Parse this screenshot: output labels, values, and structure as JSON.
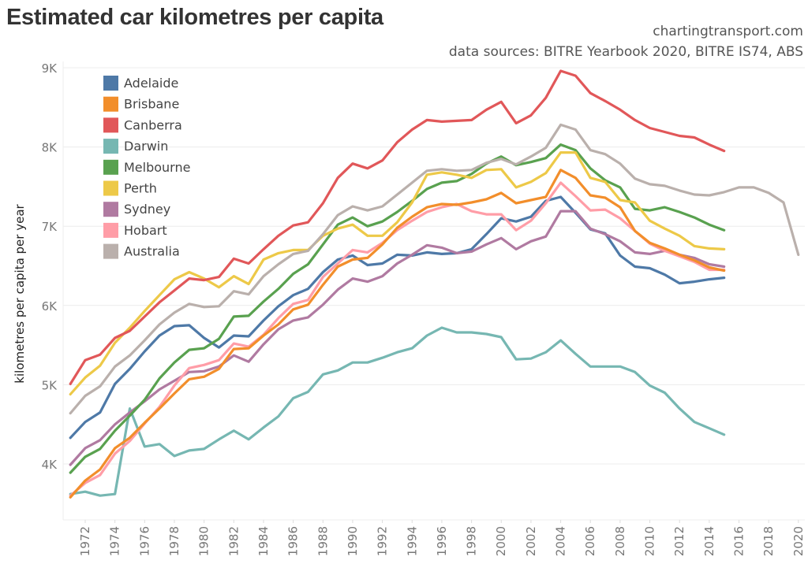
{
  "header": {
    "title": "Estimated car kilometres per capita",
    "source_site": "chartingtransport.com",
    "source_data": "data sources: BITRE Yearbook 2020, BITRE IS74, ABS"
  },
  "chart_data": {
    "type": "line",
    "title": "Estimated car kilometres per capita",
    "xlabel": "",
    "ylabel": "kilometres per capita per year",
    "ylim": [
      3300,
      9000
    ],
    "xlim": [
      1971,
      2020
    ],
    "y_ticks": [
      4000,
      5000,
      6000,
      7000,
      8000,
      9000
    ],
    "y_tick_labels": [
      "4K",
      "5K",
      "6K",
      "7K",
      "8K",
      "9K"
    ],
    "x_ticks": [
      1972,
      1974,
      1976,
      1978,
      1980,
      1982,
      1984,
      1986,
      1988,
      1990,
      1992,
      1994,
      1996,
      1998,
      2000,
      2002,
      2004,
      2006,
      2008,
      2010,
      2012,
      2014,
      2016,
      2018,
      2020
    ],
    "grid": "horizontal",
    "legend_position": "top-left",
    "series": [
      {
        "name": "Adelaide",
        "color": "#4e79a7",
        "start_year": 1971,
        "values": [
          4330,
          4530,
          4650,
          5010,
          5200,
          5420,
          5620,
          5740,
          5750,
          5590,
          5470,
          5620,
          5610,
          5810,
          5990,
          6130,
          6210,
          6420,
          6580,
          6630,
          6510,
          6530,
          6640,
          6630,
          6670,
          6650,
          6660,
          6710,
          6900,
          7100,
          7060,
          7120,
          7320,
          7370,
          7170,
          6960,
          6910,
          6630,
          6490,
          6470,
          6390,
          6280,
          6300,
          6330,
          6350
        ]
      },
      {
        "name": "Brisbane",
        "color": "#f28e2b",
        "start_year": 1971,
        "values": [
          3580,
          3790,
          3930,
          4200,
          4330,
          4520,
          4700,
          4890,
          5070,
          5100,
          5200,
          5450,
          5460,
          5620,
          5760,
          5950,
          6010,
          6260,
          6490,
          6580,
          6600,
          6770,
          6980,
          7120,
          7240,
          7280,
          7270,
          7300,
          7340,
          7420,
          7290,
          7330,
          7370,
          7710,
          7610,
          7390,
          7360,
          7240,
          6940,
          6790,
          6720,
          6640,
          6570,
          6480,
          6440
        ]
      },
      {
        "name": "Canberra",
        "color": "#e15759",
        "start_year": 1971,
        "values": [
          5010,
          5310,
          5380,
          5590,
          5680,
          5860,
          6040,
          6190,
          6340,
          6320,
          6360,
          6590,
          6530,
          6710,
          6880,
          7010,
          7050,
          7290,
          7610,
          7790,
          7730,
          7830,
          8060,
          8220,
          8340,
          8320,
          8330,
          8340,
          8470,
          8570,
          8300,
          8400,
          8620,
          8960,
          8900,
          8680,
          8580,
          8470,
          8340,
          8240,
          8190,
          8140,
          8120,
          8030,
          7950
        ]
      },
      {
        "name": "Darwin",
        "color": "#76b7b2",
        "start_year": 1971,
        "values": [
          3620,
          3650,
          3600,
          3620,
          4700,
          4220,
          4250,
          4100,
          4170,
          4190,
          4310,
          4420,
          4310,
          4460,
          4600,
          4830,
          4910,
          5130,
          5180,
          5280,
          5280,
          5340,
          5410,
          5460,
          5620,
          5720,
          5660,
          5660,
          5640,
          5600,
          5320,
          5330,
          5410,
          5560,
          5390,
          5230,
          5230,
          5230,
          5160,
          4990,
          4900,
          4700,
          4530,
          4450,
          4370
        ]
      },
      {
        "name": "Melbourne",
        "color": "#59a14f",
        "start_year": 1971,
        "values": [
          3890,
          4090,
          4190,
          4420,
          4610,
          4810,
          5080,
          5280,
          5440,
          5460,
          5580,
          5860,
          5870,
          6050,
          6210,
          6400,
          6520,
          6770,
          7020,
          7110,
          7000,
          7060,
          7180,
          7320,
          7470,
          7550,
          7570,
          7660,
          7790,
          7880,
          7770,
          7810,
          7860,
          8030,
          7960,
          7730,
          7580,
          7490,
          7220,
          7200,
          7240,
          7180,
          7110,
          7020,
          6950
        ]
      },
      {
        "name": "Perth",
        "color": "#edc948",
        "start_year": 1971,
        "values": [
          4880,
          5090,
          5240,
          5530,
          5720,
          5930,
          6130,
          6330,
          6420,
          6340,
          6230,
          6370,
          6270,
          6580,
          6660,
          6700,
          6700,
          6880,
          6970,
          7020,
          6880,
          6880,
          7050,
          7300,
          7650,
          7680,
          7650,
          7610,
          7710,
          7720,
          7490,
          7560,
          7670,
          7930,
          7930,
          7610,
          7560,
          7330,
          7300,
          7070,
          6970,
          6880,
          6750,
          6720,
          6710
        ]
      },
      {
        "name": "Sydney",
        "color": "#b07aa1",
        "start_year": 1971,
        "values": [
          3990,
          4200,
          4300,
          4500,
          4650,
          4790,
          4940,
          5050,
          5160,
          5170,
          5230,
          5370,
          5290,
          5510,
          5700,
          5810,
          5850,
          6010,
          6200,
          6340,
          6300,
          6370,
          6530,
          6640,
          6760,
          6730,
          6660,
          6680,
          6770,
          6850,
          6710,
          6810,
          6870,
          7190,
          7190,
          6970,
          6900,
          6810,
          6670,
          6650,
          6690,
          6640,
          6600,
          6520,
          6490
        ]
      },
      {
        "name": "Hobart",
        "color": "#ff9da7",
        "start_year": 1971,
        "values": [
          3600,
          3760,
          3860,
          4130,
          4290,
          4510,
          4720,
          4990,
          5210,
          5250,
          5310,
          5520,
          5480,
          5630,
          5840,
          6020,
          6070,
          6360,
          6530,
          6700,
          6670,
          6790,
          6950,
          7070,
          7180,
          7240,
          7280,
          7190,
          7150,
          7150,
          6950,
          7070,
          7290,
          7550,
          7380,
          7200,
          7210,
          7100,
          6940,
          6780,
          6690,
          6620,
          6550,
          6450,
          6450
        ]
      },
      {
        "name": "Australia",
        "color": "#bab0ac",
        "start_year": 1971,
        "values": [
          4640,
          4860,
          4980,
          5230,
          5370,
          5560,
          5760,
          5910,
          6020,
          5980,
          5990,
          6180,
          6140,
          6370,
          6520,
          6650,
          6690,
          6900,
          7140,
          7250,
          7200,
          7250,
          7400,
          7550,
          7700,
          7720,
          7700,
          7710,
          7800,
          7850,
          7780,
          7880,
          7990,
          8280,
          8220,
          7960,
          7910,
          7790,
          7600,
          7530,
          7510,
          7450,
          7400,
          7390,
          7430,
          7490,
          7490,
          7420,
          7300,
          6640
        ]
      }
    ]
  }
}
